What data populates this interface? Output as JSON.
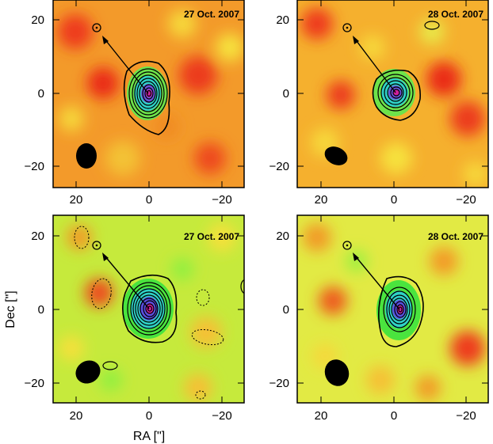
{
  "figure": {
    "xlabel": "RA [\"]",
    "ylabel": "Dec [\"]",
    "xlim": [
      25,
      -25
    ],
    "ylim": [
      -25,
      25
    ],
    "xticks": [
      "20",
      "0",
      "−20"
    ],
    "yticks": [
      "20",
      "0",
      "−20"
    ],
    "colormap": [
      "#ee2a1a",
      "#f5901e",
      "#f6e03a",
      "#c8f040",
      "#3cea3c",
      "#2fd2d2",
      "#5a4ee0",
      "#d020a0"
    ]
  },
  "panels": [
    {
      "label": "27 Oct. 2007"
    },
    {
      "label": "28 Oct. 2007"
    },
    {
      "label": "27 Oct. 2007"
    },
    {
      "label": "28 Oct. 2007"
    }
  ]
}
